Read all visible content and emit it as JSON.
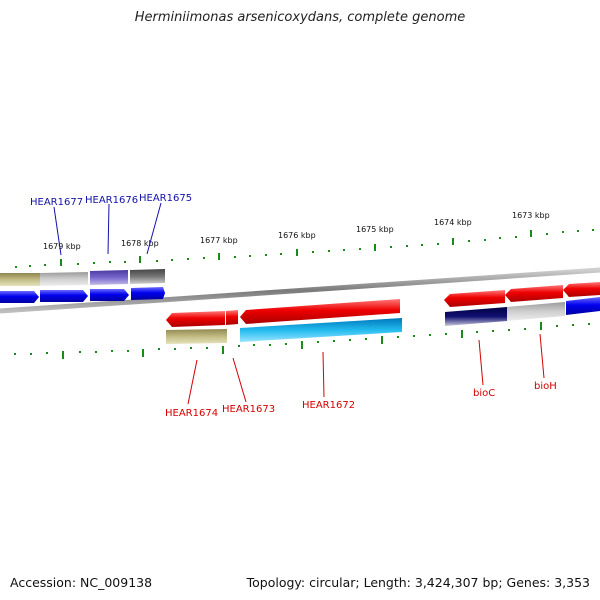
{
  "title": "Herminiimonas arsenicoxydans, complete genome",
  "footer": {
    "accession": "Accession: NC_009138",
    "topology": "Topology: circular; Length: 3,424,307 bp; Genes: 3,353"
  },
  "ticks": [
    {
      "label": "1679 kbp"
    },
    {
      "label": "1678 kbp"
    },
    {
      "label": "1677 kbp"
    },
    {
      "label": "1676 kbp"
    },
    {
      "label": "1675 kbp"
    },
    {
      "label": "1674 kbp"
    },
    {
      "label": "1673 kbp"
    }
  ],
  "gene_labels_top": [
    {
      "label": "HEAR1677"
    },
    {
      "label": "HEAR1676"
    },
    {
      "label": "HEAR1675"
    }
  ],
  "gene_labels_bottom": [
    {
      "label": "HEAR1674"
    },
    {
      "label": "HEAR1673"
    },
    {
      "label": "HEAR1672"
    },
    {
      "label": "bioC"
    },
    {
      "label": "bioH"
    }
  ],
  "colors": {
    "red_gene": "#e80000",
    "blue_gene": "#0000ee",
    "olive": "#b0aa70",
    "gray": "#b8b8b8",
    "purple": "#6655bb",
    "dark_gray": "#666666",
    "cyan": "#22bbee",
    "navy": "#101070",
    "tick_green": "#1a8a1a",
    "top_label_blue": "#1212a8",
    "bottom_label_red": "#d40000"
  }
}
